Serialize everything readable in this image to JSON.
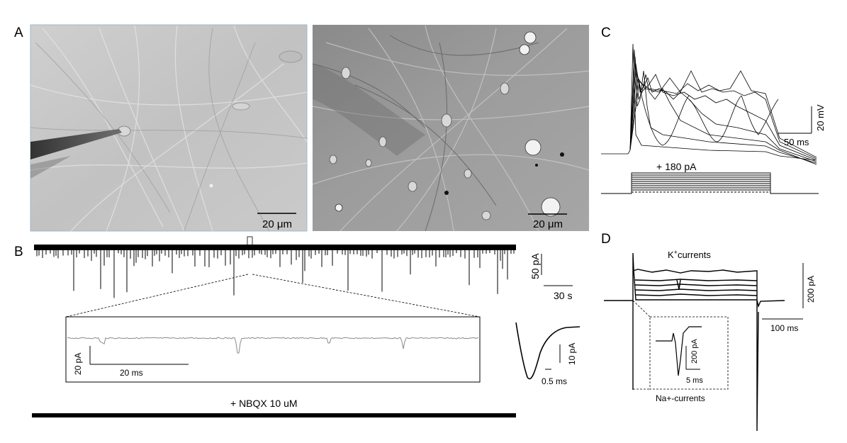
{
  "panels": {
    "a": {
      "label": "A",
      "left_image": {
        "scale_bar": "20 μm"
      },
      "right_image": {
        "scale_bar": "20 μm"
      }
    },
    "b": {
      "label": "B",
      "main_scale": {
        "amplitude": "50 pA",
        "time": "30 s"
      },
      "inset_scale": {
        "amplitude": "20 pA",
        "time": "20 ms"
      },
      "average_scale": {
        "amplitude": "10 pA",
        "time": "0.5 ms"
      },
      "drug_label": "+ NBQX 10 uM"
    },
    "c": {
      "label": "C",
      "scale": {
        "voltage": "20 mV",
        "time": "50 ms"
      },
      "stimulus_label": "+ 180 pA"
    },
    "d": {
      "label": "D",
      "k_label_prefix": "K",
      "k_label_sup": "+",
      "k_label_suffix": "currents",
      "na_label": "Na+-currents",
      "scale": {
        "current": "200 pA",
        "time": "100 ms"
      },
      "inset_scale": {
        "current": "200 pA",
        "time": "5 ms"
      }
    }
  },
  "colors": {
    "background": "#ffffff",
    "trace": "#000000",
    "micrograph_a": "#c6c6c6",
    "micrograph_b": "#9a9a9a"
  }
}
